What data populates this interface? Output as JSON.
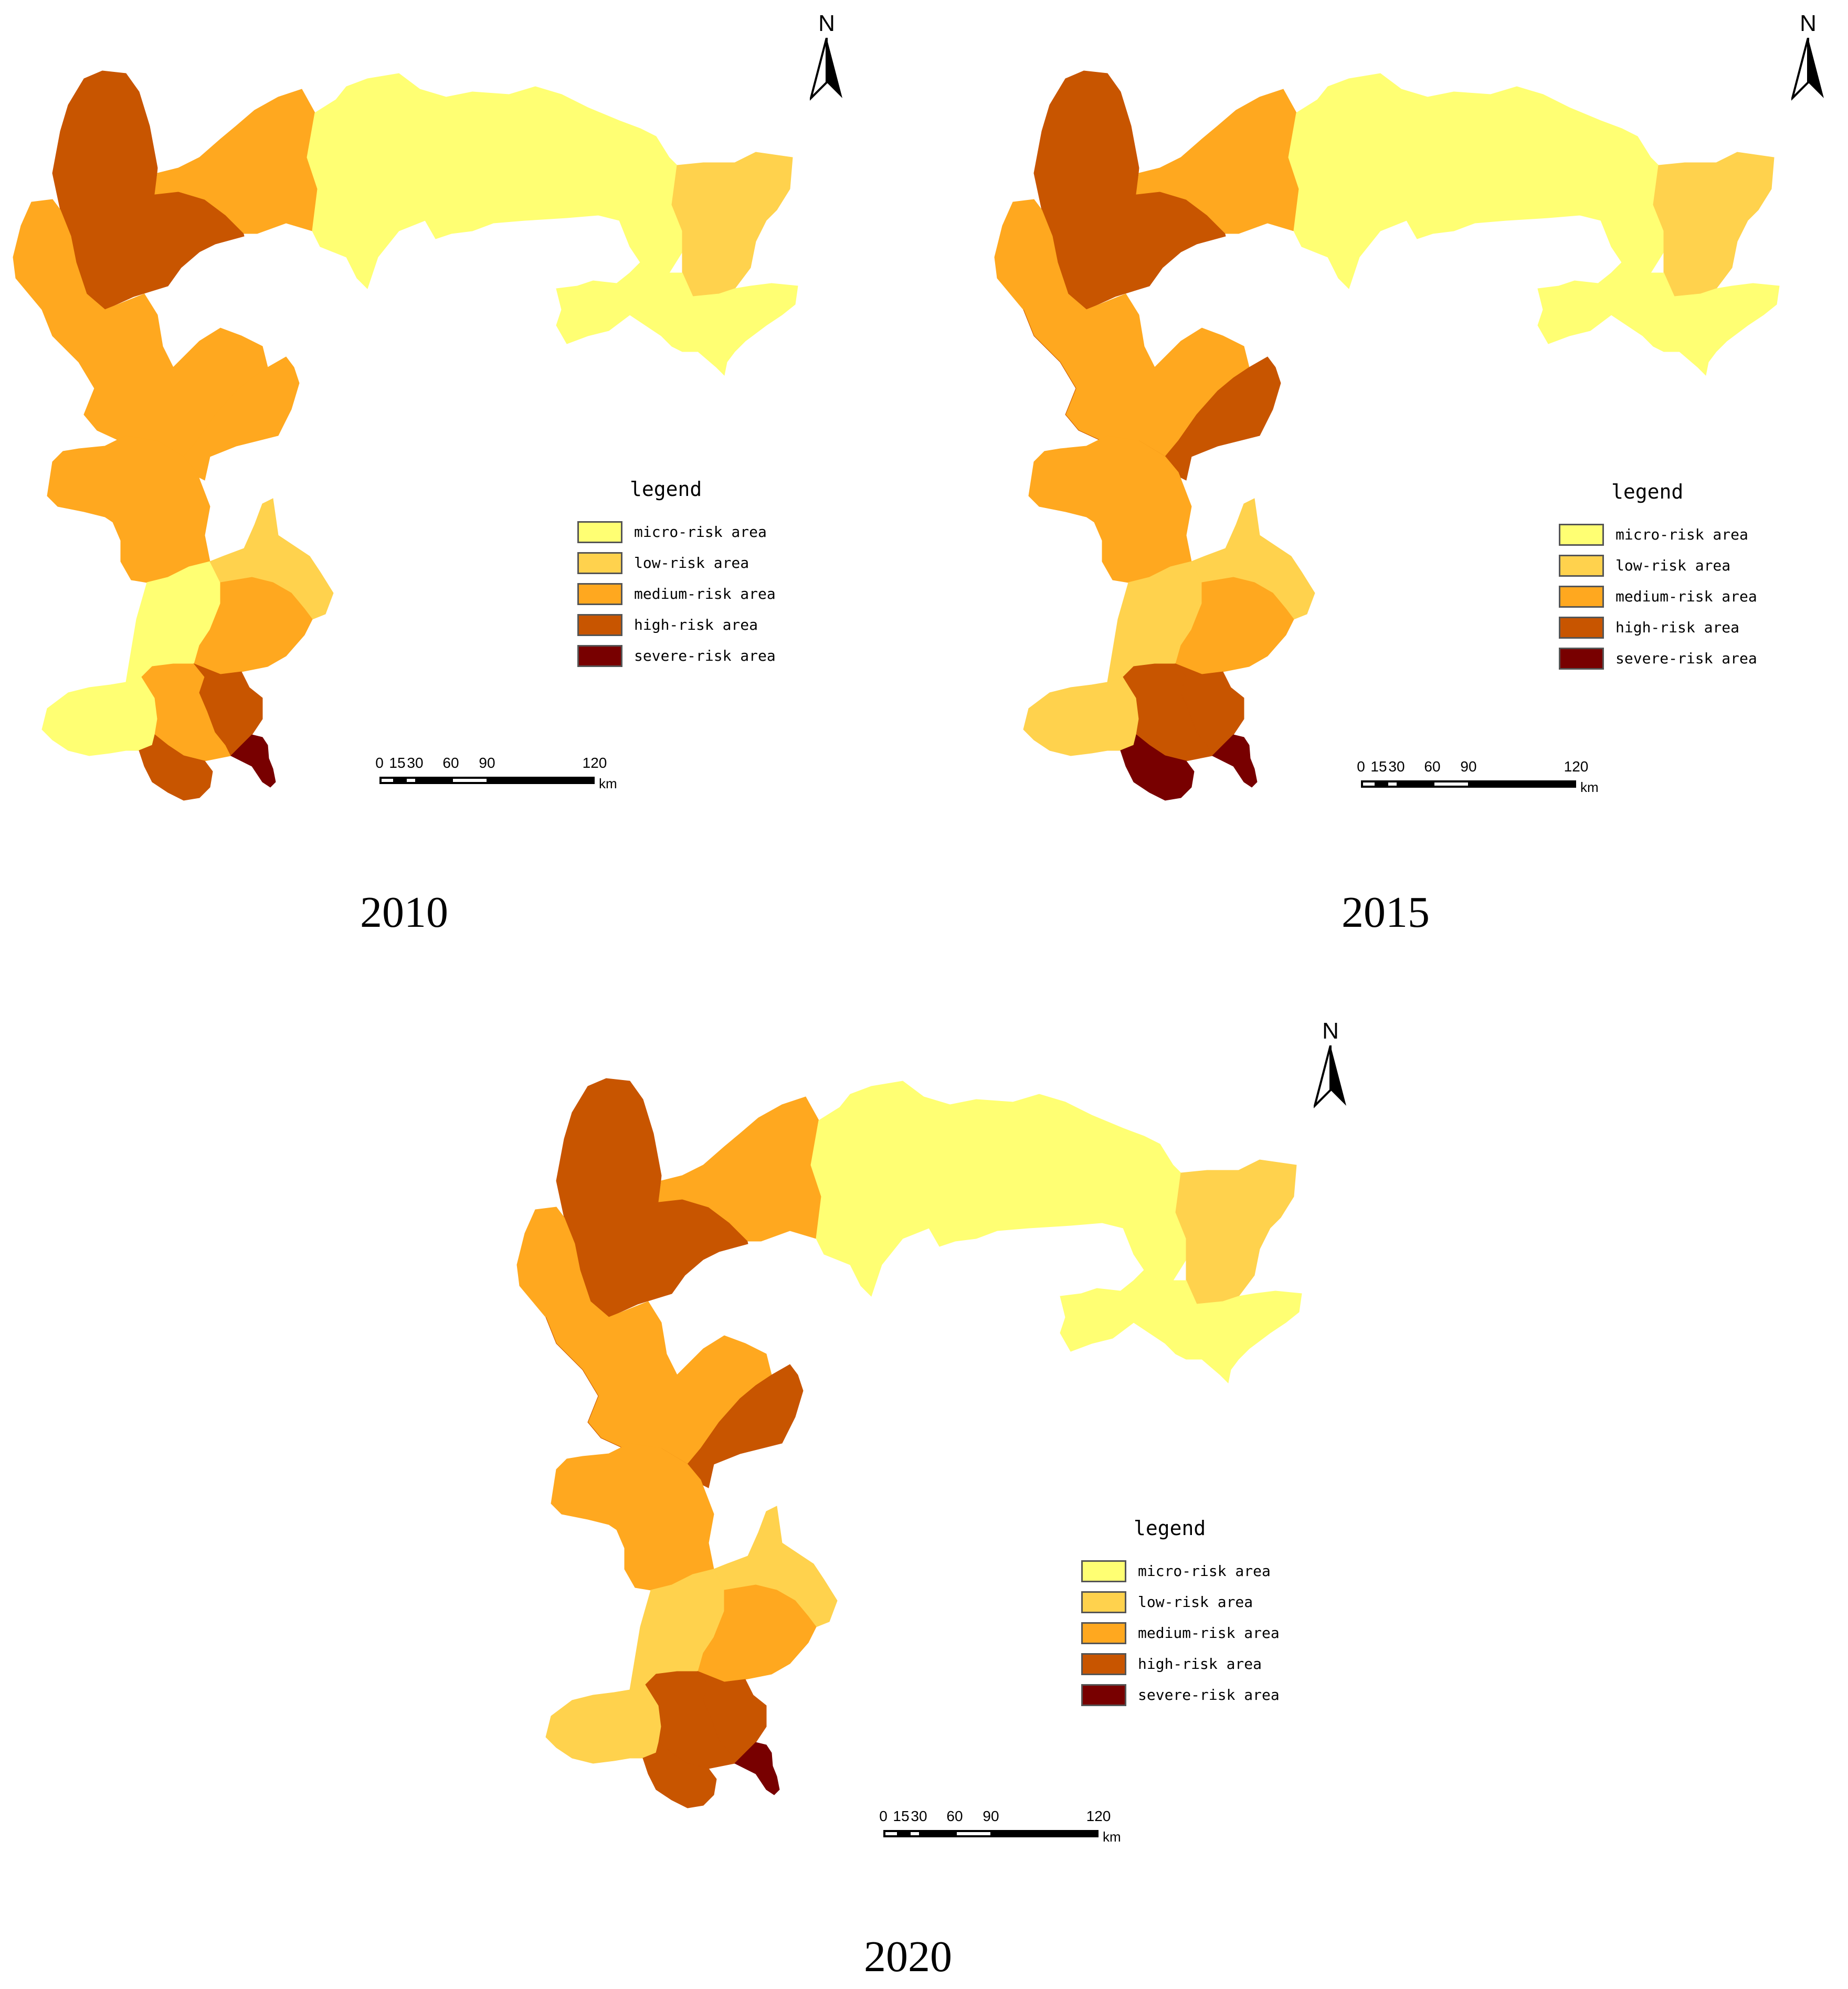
{
  "colors": {
    "micro": "#ffff73",
    "low": "#ffd24d",
    "medium": "#ffa81f",
    "high": "#c85500",
    "severe": "#780000"
  },
  "legend": {
    "title": "legend",
    "items": [
      {
        "key": "micro",
        "label": "micro-risk area"
      },
      {
        "key": "low",
        "label": "low-risk area"
      },
      {
        "key": "medium",
        "label": "medium-risk area"
      },
      {
        "key": "high",
        "label": "high-risk area"
      },
      {
        "key": "severe",
        "label": "severe-risk area"
      }
    ]
  },
  "north_label": "N",
  "scale": {
    "ticks": [
      "0",
      "15",
      "30",
      "60",
      "90",
      "120"
    ],
    "unit": "km"
  },
  "maps": [
    {
      "year": "2010",
      "regions": {
        "nw_north": "high",
        "nw_link": "medium",
        "nw_west": "medium",
        "center_top": "micro",
        "east_top": "low",
        "east_bottom": "micro",
        "mid_north": "medium",
        "mid_south": "medium",
        "south_west_up": "micro",
        "south_east_up": "low",
        "south_center": "medium",
        "sw_bottom": "micro",
        "south_mid_left": "medium",
        "south_mid_right": "high",
        "south_tip": "high",
        "se_tip": "severe"
      }
    },
    {
      "year": "2015",
      "regions": {
        "nw_north": "high",
        "nw_link": "medium",
        "nw_west": "medium",
        "center_top": "micro",
        "east_top": "low",
        "east_bottom": "micro",
        "mid_north": "high",
        "mid_south": "medium",
        "south_west_up": "low",
        "south_east_up": "low",
        "south_center": "medium",
        "sw_bottom": "low",
        "south_mid_left": "high",
        "south_mid_right": "high",
        "south_tip": "severe",
        "se_tip": "severe"
      }
    },
    {
      "year": "2020",
      "regions": {
        "nw_north": "high",
        "nw_link": "medium",
        "nw_west": "medium",
        "center_top": "micro",
        "east_top": "low",
        "east_bottom": "micro",
        "mid_north": "high",
        "mid_south": "medium",
        "south_west_up": "low",
        "south_east_up": "low",
        "south_center": "medium",
        "sw_bottom": "low",
        "south_mid_left": "high",
        "south_mid_right": "high",
        "south_tip": "high",
        "se_tip": "severe"
      }
    }
  ]
}
